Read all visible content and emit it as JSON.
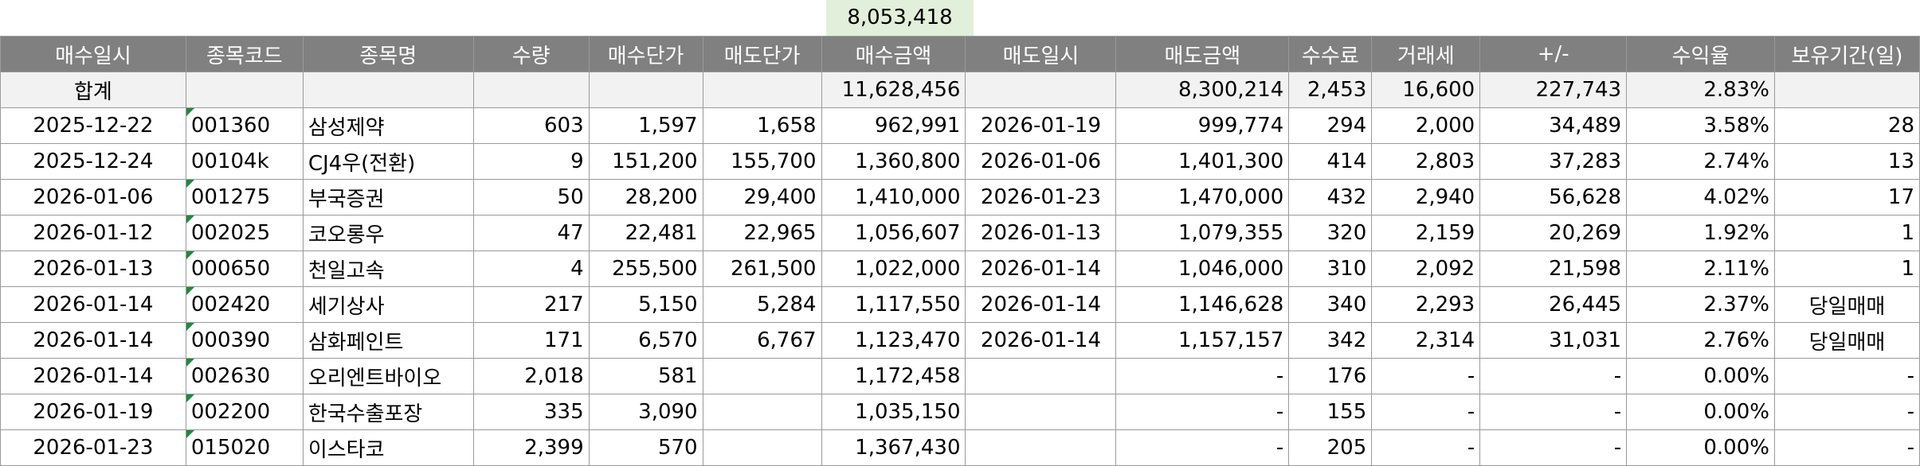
{
  "top_total": "8,053,418",
  "headers": [
    "매수일시",
    "종목코드",
    "종목명",
    "수량",
    "매수단가",
    "매도단가",
    "매수금액",
    "매도일시",
    "매도금액",
    "수수료",
    "거래세",
    "+/-",
    "수익율",
    "보유기간(일)"
  ],
  "summary": {
    "label": "합계",
    "buy_amount": "11,628,456",
    "sell_amount": "8,300,214",
    "fee": "2,453",
    "tax": "16,600",
    "pl": "227,743",
    "rate": "2.83%"
  },
  "rows": [
    {
      "buy_date": "2025-12-22",
      "code": "001360",
      "name": "삼성제약",
      "qty": "603",
      "buy_price": "1,597",
      "sell_price": "1,658",
      "buy_amount": "962,991",
      "sell_date": "2026-01-19",
      "sell_amount": "999,774",
      "fee": "294",
      "tax": "2,000",
      "pl": "34,489",
      "rate": "3.58%",
      "hold": "28",
      "flag": true
    },
    {
      "buy_date": "2025-12-24",
      "code": "00104k",
      "name": "CJ4우(전환)",
      "qty": "9",
      "buy_price": "151,200",
      "sell_price": "155,700",
      "buy_amount": "1,360,800",
      "sell_date": "2026-01-06",
      "sell_amount": "1,401,300",
      "fee": "414",
      "tax": "2,803",
      "pl": "37,283",
      "rate": "2.74%",
      "hold": "13",
      "flag": false
    },
    {
      "buy_date": "2026-01-06",
      "code": "001275",
      "name": "부국증권",
      "qty": "50",
      "buy_price": "28,200",
      "sell_price": "29,400",
      "buy_amount": "1,410,000",
      "sell_date": "2026-01-23",
      "sell_amount": "1,470,000",
      "fee": "432",
      "tax": "2,940",
      "pl": "56,628",
      "rate": "4.02%",
      "hold": "17",
      "flag": true
    },
    {
      "buy_date": "2026-01-12",
      "code": "002025",
      "name": "코오롱우",
      "qty": "47",
      "buy_price": "22,481",
      "sell_price": "22,965",
      "buy_amount": "1,056,607",
      "sell_date": "2026-01-13",
      "sell_amount": "1,079,355",
      "fee": "320",
      "tax": "2,159",
      "pl": "20,269",
      "rate": "1.92%",
      "hold": "1",
      "flag": true
    },
    {
      "buy_date": "2026-01-13",
      "code": "000650",
      "name": "천일고속",
      "qty": "4",
      "buy_price": "255,500",
      "sell_price": "261,500",
      "buy_amount": "1,022,000",
      "sell_date": "2026-01-14",
      "sell_amount": "1,046,000",
      "fee": "310",
      "tax": "2,092",
      "pl": "21,598",
      "rate": "2.11%",
      "hold": "1",
      "flag": true
    },
    {
      "buy_date": "2026-01-14",
      "code": "002420",
      "name": "세기상사",
      "qty": "217",
      "buy_price": "5,150",
      "sell_price": "5,284",
      "buy_amount": "1,117,550",
      "sell_date": "2026-01-14",
      "sell_amount": "1,146,628",
      "fee": "340",
      "tax": "2,293",
      "pl": "26,445",
      "rate": "2.37%",
      "hold": "당일매매",
      "flag": true
    },
    {
      "buy_date": "2026-01-14",
      "code": "000390",
      "name": "삼화페인트",
      "qty": "171",
      "buy_price": "6,570",
      "sell_price": "6,767",
      "buy_amount": "1,123,470",
      "sell_date": "2026-01-14",
      "sell_amount": "1,157,157",
      "fee": "342",
      "tax": "2,314",
      "pl": "31,031",
      "rate": "2.76%",
      "hold": "당일매매",
      "flag": true
    },
    {
      "buy_date": "2026-01-14",
      "code": "002630",
      "name": "오리엔트바이오",
      "qty": "2,018",
      "buy_price": "581",
      "sell_price": "",
      "buy_amount": "1,172,458",
      "sell_date": "",
      "sell_amount": "-",
      "fee": "176",
      "tax": "-",
      "pl": "-",
      "rate": "0.00%",
      "hold": "-",
      "flag": true
    },
    {
      "buy_date": "2026-01-19",
      "code": "002200",
      "name": "한국수출포장",
      "qty": "335",
      "buy_price": "3,090",
      "sell_price": "",
      "buy_amount": "1,035,150",
      "sell_date": "",
      "sell_amount": "-",
      "fee": "155",
      "tax": "-",
      "pl": "-",
      "rate": "0.00%",
      "hold": "-",
      "flag": true
    },
    {
      "buy_date": "2026-01-23",
      "code": "015020",
      "name": "이스타코",
      "qty": "2,399",
      "buy_price": "570",
      "sell_price": "",
      "buy_amount": "1,367,430",
      "sell_date": "",
      "sell_amount": "-",
      "fee": "205",
      "tax": "-",
      "pl": "-",
      "rate": "0.00%",
      "hold": "-",
      "flag": true
    }
  ]
}
